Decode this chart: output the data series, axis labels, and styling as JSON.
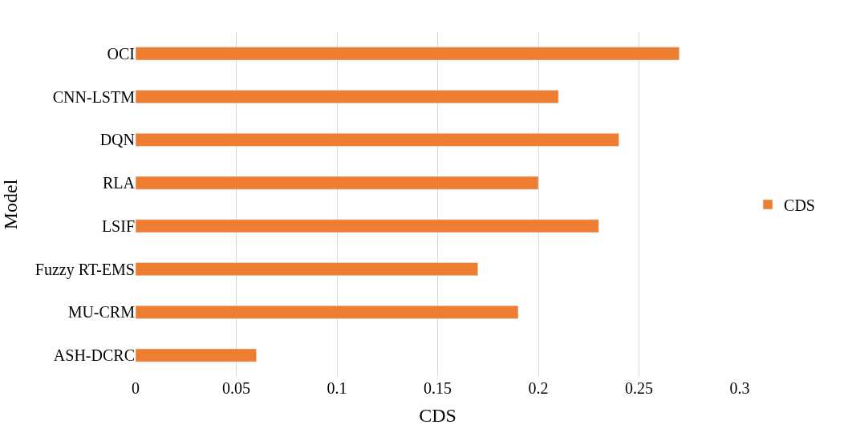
{
  "chart_data": {
    "type": "bar",
    "orientation": "horizontal",
    "xlabel": "CDS",
    "ylabel": "Model",
    "categories": [
      "OCI",
      "CNN-LSTM",
      "DQN",
      "RLA",
      "LSIF",
      "Fuzzy RT-EMS",
      "MU-CRM",
      "ASH-DCRC"
    ],
    "series": [
      {
        "name": "CDS",
        "color": "#ed7d31",
        "values": [
          0.27,
          0.21,
          0.24,
          0.2,
          0.23,
          0.17,
          0.19,
          0.06
        ]
      }
    ],
    "xlim": [
      0,
      0.3
    ],
    "xticks": [
      0,
      0.05,
      0.1,
      0.15,
      0.2,
      0.25,
      0.3
    ],
    "grid": "x",
    "legend": "right"
  }
}
